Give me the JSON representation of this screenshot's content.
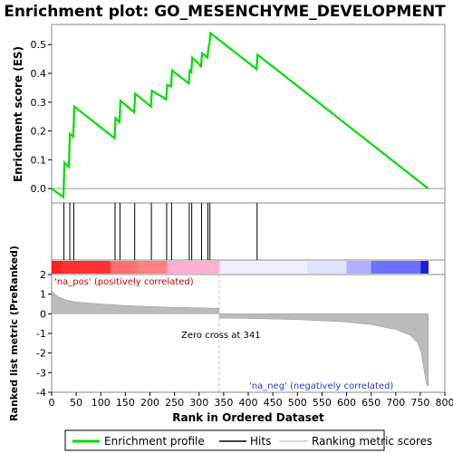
{
  "chart_data": {
    "type": "line",
    "title": "Enrichment plot: GO_MESENCHYME_DEVELOPMENT",
    "top_panel": {
      "ylabel": "Enrichment score (ES)",
      "ylim": [
        -0.05,
        0.57
      ],
      "yticks": [
        "0.0",
        "0.1",
        "0.2",
        "0.3",
        "0.4",
        "0.5"
      ],
      "series": [
        {
          "name": "Enrichment profile",
          "color": "#00dd00",
          "x": [
            0,
            24,
            26,
            35,
            37,
            44,
            46,
            128,
            130,
            138,
            140,
            168,
            170,
            202,
            204,
            233,
            235,
            243,
            245,
            279,
            281,
            284,
            286,
            304,
            306,
            317,
            319,
            321,
            323,
            417,
            419,
            766
          ],
          "y": [
            0.0,
            -0.03,
            0.09,
            0.075,
            0.19,
            0.18,
            0.285,
            0.175,
            0.245,
            0.23,
            0.305,
            0.265,
            0.33,
            0.285,
            0.34,
            0.31,
            0.36,
            0.355,
            0.41,
            0.365,
            0.41,
            0.405,
            0.455,
            0.425,
            0.47,
            0.455,
            0.49,
            0.5,
            0.54,
            0.415,
            0.465,
            0.0
          ]
        }
      ]
    },
    "hits": {
      "name": "Hits",
      "x": [
        25,
        37,
        45,
        129,
        139,
        169,
        203,
        234,
        244,
        280,
        285,
        305,
        318,
        322,
        418
      ]
    },
    "bottom_panel": {
      "ylabel": "Ranked list metric (PreRanked)",
      "xlabel": "Rank in Ordered Dataset",
      "ylim": [
        -4,
        2
      ],
      "yticks": [
        "2",
        "1",
        "0",
        "-1",
        "-2",
        "-3",
        "-4"
      ],
      "xlim": [
        0,
        800
      ],
      "xticks": [
        "0",
        "50",
        "100",
        "150",
        "200",
        "250",
        "300",
        "350",
        "400",
        "450",
        "500",
        "550",
        "600",
        "650",
        "700",
        "750",
        "800"
      ],
      "series_name": "Ranking metric scores",
      "metric_curve": {
        "x": [
          0,
          5,
          15,
          30,
          50,
          100,
          150,
          200,
          250,
          300,
          340,
          342,
          400,
          500,
          600,
          650,
          700,
          730,
          745,
          752,
          756,
          760,
          763,
          766
        ],
        "y": [
          1.2,
          1.05,
          0.85,
          0.7,
          0.6,
          0.5,
          0.42,
          0.37,
          0.33,
          0.3,
          0.28,
          -0.22,
          -0.24,
          -0.3,
          -0.42,
          -0.55,
          -0.8,
          -1.1,
          -1.5,
          -2.0,
          -2.6,
          -3.2,
          -3.6,
          -3.7
        ]
      },
      "zero_cross_label": "Zero cross at 341",
      "pos_label": "'na_pos' (positively correlated)",
      "neg_label": "'na_neg' (negatively correlated)"
    },
    "legend": [
      "Enrichment profile",
      "Hits",
      "Ranking metric scores"
    ]
  },
  "colors": {
    "profile": "#00dd00",
    "pos_label": "#cc0000",
    "neg_label": "#3333cc",
    "metric_fill": "#bbbbbb"
  }
}
